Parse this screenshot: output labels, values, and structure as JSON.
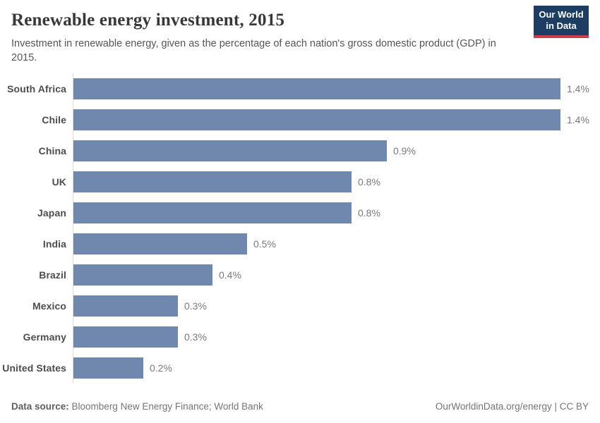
{
  "header": {
    "title": "Renewable energy investment, 2015",
    "subtitle": "Investment in renewable energy, given as the percentage of each nation's gross domestic product (GDP) in 2015.",
    "logo": {
      "line1": "Our World",
      "line2": "in Data"
    }
  },
  "chart_data": {
    "type": "bar",
    "orientation": "horizontal",
    "title": "Renewable energy investment, 2015",
    "xlabel": "",
    "ylabel": "",
    "categories": [
      "South Africa",
      "Chile",
      "China",
      "UK",
      "Japan",
      "India",
      "Brazil",
      "Mexico",
      "Germany",
      "United States"
    ],
    "values": [
      1.4,
      1.4,
      0.9,
      0.8,
      0.8,
      0.5,
      0.4,
      0.3,
      0.3,
      0.2
    ],
    "value_labels": [
      "1.4%",
      "1.4%",
      "0.9%",
      "0.8%",
      "0.8%",
      "0.5%",
      "0.4%",
      "0.3%",
      "0.3%",
      "0.2%"
    ],
    "unit": "% of GDP",
    "xlim": [
      0,
      1.4
    ],
    "grid": false,
    "legend": "none",
    "bar_color": "#7088ae"
  },
  "footer": {
    "source_label": "Data source:",
    "source_text": " Bloomberg New Energy Finance; World Bank",
    "right_text": "OurWorldinData.org/energy | CC BY"
  },
  "colors": {
    "bar": "#7088ae",
    "logo_navy": "#1d3d63",
    "logo_red": "#cf3c4c",
    "axis_line": "#dcdcdc",
    "title_text": "#383838",
    "body_text": "#555555"
  }
}
